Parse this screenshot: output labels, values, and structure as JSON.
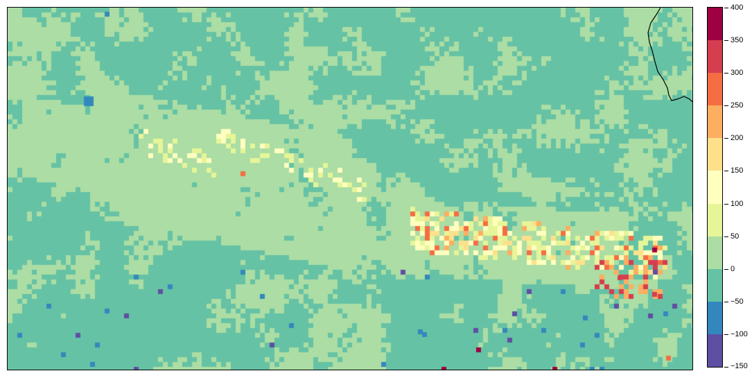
{
  "map": {
    "type": "gridded anomaly map",
    "background_value_colors": {
      "minus_50_to_0": "#5fc1a4",
      "zero_to_50": "#a8dc9d"
    },
    "boundary_line_color": "#000000"
  },
  "colorbar": {
    "labels": [
      "400",
      "350",
      "300",
      "250",
      "200",
      "150",
      "100",
      "50",
      "0",
      "−50",
      "−100",
      "−150"
    ],
    "bins": [
      {
        "range": [
          350,
          400
        ],
        "color": "#9e0142"
      },
      {
        "range": [
          300,
          350
        ],
        "color": "#d53e4f"
      },
      {
        "range": [
          250,
          300
        ],
        "color": "#f46d43"
      },
      {
        "range": [
          200,
          250
        ],
        "color": "#fdae61"
      },
      {
        "range": [
          150,
          200
        ],
        "color": "#fee08b"
      },
      {
        "range": [
          100,
          150
        ],
        "color": "#ffffbf"
      },
      {
        "range": [
          50,
          100
        ],
        "color": "#e6f598"
      },
      {
        "range": [
          0,
          50
        ],
        "color": "#abdda4"
      },
      {
        "range": [
          -50,
          0
        ],
        "color": "#66c2a5"
      },
      {
        "range": [
          -100,
          -50
        ],
        "color": "#3288bd"
      },
      {
        "range": [
          -150,
          -100
        ],
        "color": "#5e4fa2"
      }
    ]
  }
}
